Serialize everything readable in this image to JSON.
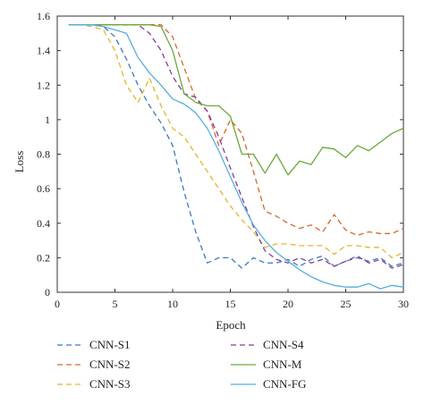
{
  "chart_data": {
    "type": "line",
    "title": "",
    "xlabel": "Epoch",
    "ylabel": "Loss",
    "xlim": [
      0,
      30
    ],
    "ylim": [
      0,
      1.6
    ],
    "xticks": [
      0,
      5,
      10,
      15,
      20,
      25,
      30
    ],
    "yticks": [
      0,
      0.2,
      0.4,
      0.6,
      0.8,
      1,
      1.2,
      1.4,
      1.6
    ],
    "xtick_labels": [
      "0",
      "5",
      "10",
      "15",
      "20",
      "25",
      "30"
    ],
    "ytick_labels": [
      "0",
      "0.2",
      "0.4",
      "0.6",
      "0.8",
      "1",
      "1.2",
      "1.4",
      "1.6"
    ],
    "grid": false,
    "legend_position": "bottom",
    "x": [
      1,
      2,
      3,
      4,
      5,
      6,
      7,
      8,
      9,
      10,
      11,
      12,
      13,
      14,
      15,
      16,
      17,
      18,
      19,
      20,
      21,
      22,
      23,
      24,
      25,
      26,
      27,
      28,
      29,
      30
    ],
    "series": [
      {
        "name": "CNN-S1",
        "color": "#3a78c8",
        "dash": "6,4",
        "values": [
          1.55,
          1.55,
          1.55,
          1.54,
          1.48,
          1.35,
          1.2,
          1.08,
          0.98,
          0.85,
          0.58,
          0.35,
          0.17,
          0.2,
          0.2,
          0.14,
          0.2,
          0.17,
          0.17,
          0.19,
          0.15,
          0.19,
          0.21,
          0.15,
          0.18,
          0.2,
          0.18,
          0.2,
          0.15,
          0.17
        ]
      },
      {
        "name": "CNN-S2",
        "color": "#d9662a",
        "dash": "6,4",
        "values": [
          1.55,
          1.55,
          1.55,
          1.55,
          1.55,
          1.55,
          1.55,
          1.55,
          1.55,
          1.48,
          1.3,
          1.12,
          1.05,
          0.85,
          1.0,
          0.92,
          0.7,
          0.47,
          0.44,
          0.4,
          0.37,
          0.39,
          0.35,
          0.45,
          0.36,
          0.33,
          0.35,
          0.34,
          0.34,
          0.37
        ]
      },
      {
        "name": "CNN-S3",
        "color": "#e8b32a",
        "dash": "6,4",
        "values": [
          1.55,
          1.55,
          1.54,
          1.52,
          1.4,
          1.2,
          1.1,
          1.24,
          1.08,
          0.95,
          0.9,
          0.8,
          0.7,
          0.6,
          0.5,
          0.42,
          0.35,
          0.26,
          0.28,
          0.28,
          0.27,
          0.27,
          0.27,
          0.22,
          0.27,
          0.27,
          0.26,
          0.26,
          0.2,
          0.23
        ]
      },
      {
        "name": "CNN-S4",
        "color": "#8a3a9c",
        "dash": "6,4",
        "values": [
          1.55,
          1.55,
          1.55,
          1.55,
          1.55,
          1.55,
          1.55,
          1.5,
          1.4,
          1.25,
          1.15,
          1.13,
          1.05,
          0.9,
          0.72,
          0.55,
          0.38,
          0.24,
          0.19,
          0.17,
          0.2,
          0.17,
          0.19,
          0.15,
          0.18,
          0.21,
          0.17,
          0.19,
          0.14,
          0.16
        ]
      },
      {
        "name": "CNN-M",
        "color": "#6aaa3a",
        "dash": "",
        "values": [
          1.55,
          1.55,
          1.55,
          1.55,
          1.55,
          1.55,
          1.55,
          1.55,
          1.54,
          1.4,
          1.15,
          1.1,
          1.08,
          1.08,
          1.02,
          0.8,
          0.8,
          0.69,
          0.8,
          0.68,
          0.76,
          0.74,
          0.84,
          0.83,
          0.78,
          0.85,
          0.82,
          0.87,
          0.92,
          0.95
        ]
      },
      {
        "name": "CNN-FG",
        "color": "#55aee0",
        "dash": "",
        "values": [
          1.55,
          1.55,
          1.55,
          1.54,
          1.52,
          1.5,
          1.36,
          1.27,
          1.2,
          1.12,
          1.09,
          1.04,
          0.95,
          0.82,
          0.67,
          0.52,
          0.39,
          0.3,
          0.23,
          0.18,
          0.13,
          0.09,
          0.06,
          0.04,
          0.03,
          0.03,
          0.05,
          0.02,
          0.04,
          0.03
        ]
      }
    ]
  }
}
